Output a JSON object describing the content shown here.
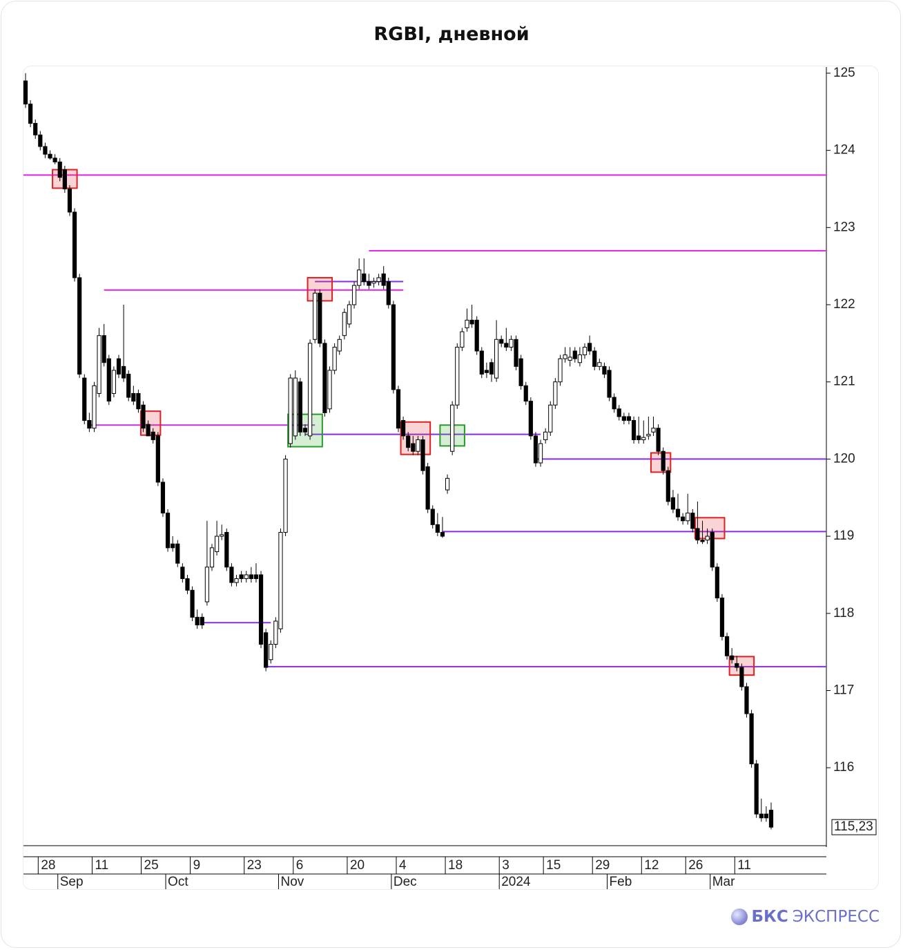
{
  "chart_data": {
    "type": "candlestick",
    "title": "RGBI, дневной",
    "open": [
      124.9,
      124.6,
      124.35,
      124.2,
      124.05,
      123.95,
      123.9,
      123.85,
      123.75,
      123.5,
      123.2,
      122.35,
      121.05,
      120.5,
      120.4,
      120.85,
      121.6,
      121.3,
      120.85,
      121.3,
      121.2,
      121.1,
      120.85,
      120.85,
      120.7,
      120.45,
      120.35,
      120.3,
      119.7,
      119.3,
      118.9,
      118.9,
      118.6,
      118.45,
      118.3,
      117.95,
      117.95,
      118.15,
      118.6,
      118.8,
      119.0,
      119.05,
      118.6,
      118.4,
      118.5,
      118.45,
      118.5,
      118.5,
      118.5,
      117.75,
      117.4,
      117.6,
      117.8,
      119.05,
      120.2,
      120.3,
      121.0,
      120.4,
      120.3,
      121.55,
      122.15,
      121.5,
      120.65,
      121.15,
      121.4,
      121.6,
      121.75,
      122.0,
      122.25,
      122.4,
      122.3,
      122.28,
      122.3,
      122.4,
      122.3,
      122.0,
      120.9,
      120.5,
      120.3,
      120.2,
      120.1,
      120.25,
      119.9,
      119.35,
      119.15,
      119.05,
      119.6,
      120.1,
      120.7,
      121.45,
      121.7,
      121.8,
      121.8,
      121.4,
      121.15,
      121.25,
      121.05,
      121.55,
      121.5,
      121.45,
      121.55,
      121.3,
      120.95,
      120.75,
      120.3,
      119.95,
      120.25,
      120.35,
      120.7,
      121.0,
      121.3,
      121.28,
      121.4,
      121.25,
      121.35,
      121.5,
      121.4,
      121.2,
      121.2,
      121.15,
      120.8,
      120.65,
      120.55,
      120.55,
      120.5,
      120.3,
      120.25,
      120.3,
      120.35,
      120.4,
      120.1,
      119.85,
      119.5,
      119.35,
      119.25,
      119.2,
      119.3,
      119.1,
      118.95,
      118.95,
      119.05,
      118.6,
      118.2,
      117.7,
      117.45,
      117.35,
      117.3,
      117.05,
      116.7,
      116.05,
      115.4,
      115.4,
      115.45
    ],
    "high": [
      125.0,
      124.65,
      124.4,
      124.25,
      124.1,
      124.0,
      123.95,
      123.9,
      123.8,
      123.55,
      123.25,
      122.4,
      121.1,
      120.6,
      121.0,
      121.7,
      121.75,
      121.35,
      121.2,
      121.35,
      122.0,
      121.15,
      120.95,
      120.9,
      120.75,
      120.5,
      120.4,
      120.35,
      119.75,
      119.35,
      119.0,
      118.95,
      118.65,
      118.5,
      118.35,
      118.05,
      118.0,
      119.2,
      118.9,
      119.2,
      119.15,
      119.1,
      118.65,
      118.5,
      118.55,
      118.55,
      118.6,
      118.65,
      118.55,
      117.8,
      117.65,
      117.95,
      119.1,
      120.05,
      121.1,
      121.15,
      121.05,
      120.45,
      121.55,
      122.2,
      122.2,
      121.55,
      121.2,
      121.5,
      121.6,
      121.95,
      122.05,
      122.3,
      122.6,
      122.6,
      122.4,
      122.35,
      122.4,
      122.5,
      122.35,
      122.05,
      120.95,
      120.55,
      120.35,
      120.3,
      120.3,
      120.3,
      119.95,
      119.4,
      119.3,
      119.25,
      119.8,
      120.75,
      121.5,
      121.7,
      121.95,
      122.0,
      121.85,
      121.45,
      121.25,
      121.3,
      121.8,
      121.6,
      121.7,
      121.6,
      121.6,
      121.35,
      121.0,
      120.8,
      120.35,
      120.25,
      120.4,
      120.75,
      121.05,
      121.35,
      121.45,
      121.45,
      121.45,
      121.45,
      121.5,
      121.6,
      121.45,
      121.3,
      121.25,
      121.2,
      120.85,
      120.7,
      120.6,
      120.6,
      120.55,
      120.55,
      120.5,
      120.55,
      120.55,
      120.45,
      120.15,
      119.9,
      119.6,
      119.55,
      119.3,
      119.55,
      119.35,
      119.45,
      119.2,
      119.1,
      119.1,
      118.65,
      118.25,
      117.75,
      117.55,
      117.45,
      117.35,
      117.1,
      116.75,
      116.1,
      115.6,
      115.5,
      115.55
    ],
    "low": [
      124.55,
      124.3,
      124.15,
      124.0,
      123.9,
      123.88,
      123.82,
      123.6,
      123.45,
      123.15,
      122.3,
      121.05,
      120.45,
      120.35,
      120.35,
      120.8,
      121.2,
      120.7,
      120.8,
      121.05,
      121.0,
      120.75,
      120.7,
      120.6,
      120.35,
      120.3,
      120.2,
      119.65,
      119.25,
      118.8,
      118.8,
      118.6,
      118.4,
      118.25,
      117.9,
      117.8,
      117.8,
      118.1,
      118.55,
      118.75,
      118.95,
      118.55,
      118.35,
      118.35,
      118.4,
      118.4,
      118.4,
      118.4,
      117.55,
      117.25,
      117.35,
      117.55,
      117.75,
      119.0,
      120.15,
      120.25,
      120.3,
      120.3,
      120.25,
      121.5,
      121.45,
      120.55,
      120.6,
      121.1,
      121.35,
      121.55,
      121.7,
      121.95,
      122.2,
      122.25,
      122.2,
      122.22,
      122.25,
      122.2,
      121.95,
      120.85,
      120.35,
      120.25,
      120.1,
      120.05,
      120.05,
      119.8,
      119.3,
      119.1,
      119.0,
      118.98,
      119.55,
      120.05,
      120.65,
      121.4,
      121.65,
      121.7,
      121.35,
      121.05,
      121.05,
      121.0,
      121.0,
      121.45,
      121.4,
      121.4,
      121.15,
      120.9,
      120.7,
      120.25,
      119.9,
      119.9,
      120.2,
      120.3,
      120.65,
      120.95,
      121.25,
      121.2,
      121.25,
      121.2,
      121.3,
      121.35,
      121.15,
      121.15,
      121.05,
      120.75,
      120.6,
      120.5,
      120.45,
      120.45,
      120.2,
      120.2,
      120.2,
      120.25,
      120.3,
      120.05,
      119.8,
      119.4,
      119.3,
      119.2,
      119.15,
      119.15,
      119.05,
      118.9,
      118.9,
      118.9,
      118.55,
      118.15,
      117.65,
      117.4,
      117.35,
      117.25,
      117.0,
      116.65,
      116.0,
      115.35,
      115.3,
      115.3,
      115.2
    ],
    "close": [
      124.6,
      124.35,
      124.2,
      124.05,
      123.95,
      123.9,
      123.85,
      123.65,
      123.5,
      123.2,
      122.35,
      121.1,
      120.5,
      120.4,
      120.95,
      121.6,
      121.25,
      120.75,
      121.15,
      121.1,
      121.05,
      120.8,
      120.75,
      120.65,
      120.4,
      120.3,
      120.25,
      119.7,
      119.3,
      118.85,
      118.85,
      118.65,
      118.45,
      118.3,
      117.95,
      117.85,
      117.85,
      118.6,
      118.85,
      119.0,
      119.02,
      118.6,
      118.4,
      118.45,
      118.45,
      118.5,
      118.45,
      118.45,
      117.6,
      117.3,
      117.6,
      117.9,
      119.05,
      120.0,
      121.05,
      121.05,
      120.35,
      120.35,
      121.5,
      122.15,
      121.5,
      120.6,
      121.15,
      121.45,
      121.55,
      121.9,
      122.0,
      122.25,
      122.45,
      122.3,
      122.25,
      122.3,
      122.35,
      122.25,
      122.0,
      120.9,
      120.4,
      120.3,
      120.15,
      120.1,
      120.25,
      119.85,
      119.35,
      119.15,
      119.05,
      119.0,
      119.75,
      120.7,
      121.45,
      121.65,
      121.8,
      121.75,
      121.4,
      121.1,
      121.12,
      121.1,
      121.55,
      121.5,
      121.45,
      121.55,
      121.2,
      120.95,
      120.75,
      120.3,
      119.95,
      120.2,
      120.35,
      120.7,
      121.0,
      121.3,
      121.35,
      121.32,
      121.3,
      121.35,
      121.45,
      121.4,
      121.2,
      121.25,
      121.1,
      120.8,
      120.65,
      120.55,
      120.5,
      120.5,
      120.25,
      120.25,
      120.28,
      120.32,
      120.4,
      120.1,
      119.85,
      119.45,
      119.35,
      119.25,
      119.2,
      119.3,
      119.1,
      118.95,
      118.93,
      119.0,
      118.6,
      118.2,
      117.7,
      117.45,
      117.4,
      117.3,
      117.05,
      116.7,
      116.05,
      115.4,
      115.35,
      115.35,
      115.23
    ],
    "categories": [
      null,
      null,
      null,
      "28",
      null,
      null,
      null,
      null,
      null,
      null,
      null,
      null,
      null,
      null,
      "11",
      null,
      null,
      null,
      null,
      null,
      null,
      null,
      null,
      null,
      "25",
      null,
      null,
      null,
      null,
      null,
      null,
      null,
      null,
      null,
      "9",
      null,
      null,
      null,
      null,
      null,
      null,
      null,
      null,
      null,
      null,
      "23",
      null,
      null,
      null,
      null,
      null,
      null,
      null,
      null,
      null,
      "6",
      null,
      null,
      null,
      null,
      null,
      null,
      null,
      null,
      null,
      null,
      "20",
      null,
      null,
      null,
      null,
      null,
      null,
      null,
      null,
      null,
      "4",
      null,
      null,
      null,
      null,
      null,
      null,
      null,
      null,
      null,
      "18",
      null,
      null,
      null,
      null,
      null,
      null,
      null,
      null,
      null,
      null,
      "3",
      null,
      null,
      null,
      null,
      null,
      null,
      null,
      null,
      "15",
      null,
      null,
      null,
      null,
      null,
      null,
      null,
      null,
      null,
      "29",
      null,
      null,
      null,
      null,
      null,
      null,
      null,
      null,
      null,
      "12",
      null,
      null,
      null,
      null,
      null,
      null,
      null,
      null,
      "26",
      null,
      null,
      null,
      null,
      null,
      null,
      null,
      null,
      null,
      "11",
      null,
      null,
      null,
      null,
      null,
      null,
      null
    ],
    "months": [
      null,
      null,
      null,
      null,
      null,
      null,
      null,
      "Sep",
      null,
      null,
      null,
      null,
      null,
      null,
      null,
      null,
      null,
      null,
      null,
      null,
      null,
      null,
      null,
      null,
      null,
      null,
      null,
      null,
      null,
      "Oct",
      null,
      null,
      null,
      null,
      null,
      null,
      null,
      null,
      null,
      null,
      null,
      null,
      null,
      null,
      null,
      null,
      null,
      null,
      null,
      null,
      null,
      null,
      "Nov",
      null,
      null,
      null,
      null,
      null,
      null,
      null,
      null,
      null,
      null,
      null,
      null,
      null,
      null,
      null,
      null,
      null,
      null,
      null,
      null,
      null,
      null,
      "Dec",
      null,
      null,
      null,
      null,
      null,
      null,
      null,
      null,
      null,
      null,
      null,
      null,
      null,
      null,
      null,
      null,
      null,
      null,
      null,
      null,
      null,
      "2024",
      null,
      null,
      null,
      null,
      null,
      null,
      null,
      null,
      null,
      null,
      null,
      null,
      null,
      null,
      null,
      null,
      null,
      null,
      null,
      null,
      null,
      "Feb",
      null,
      null,
      null,
      null,
      null,
      null,
      null,
      null,
      null,
      null,
      null,
      null,
      null,
      null,
      null,
      null,
      null,
      null,
      null,
      null,
      "Mar",
      null,
      null,
      null,
      null,
      null,
      null,
      null,
      null,
      null,
      null,
      null,
      null
    ],
    "ylim": [
      114.99,
      125.08
    ],
    "yticks": [
      116,
      117,
      118,
      119,
      120,
      121,
      122,
      123,
      124,
      125
    ],
    "last_price": {
      "value": 115.23,
      "label": "115,23"
    },
    "up_color": "#ffffff",
    "down_color": "#000000",
    "levels": [
      {
        "value": 123.68,
        "start": 0,
        "end": 152,
        "color": "#e020e0"
      },
      {
        "value": 122.7,
        "start": 70,
        "end": 152,
        "color": "#e020e0"
      },
      {
        "value": 122.19,
        "start": 16,
        "end": 77,
        "color": "#e020e0"
      },
      {
        "value": 122.3,
        "start": 59,
        "end": 77,
        "color": "#8a2be2"
      },
      {
        "value": 120.44,
        "start": 13,
        "end": 59,
        "color": "#c030e0"
      },
      {
        "value": 120.32,
        "start": 57,
        "end": 105,
        "color": "#8a2be2"
      },
      {
        "value": 120.0,
        "start": 104,
        "end": 152,
        "color": "#8a2be2"
      },
      {
        "value": 119.06,
        "start": 85,
        "end": 152,
        "color": "#8a2be2"
      },
      {
        "value": 117.88,
        "start": 36,
        "end": 50,
        "color": "#8a2be2"
      },
      {
        "value": 117.31,
        "start": 49,
        "end": 152,
        "color": "#8a2be2"
      }
    ],
    "zones": [
      {
        "start": 6,
        "end": 10,
        "low": 123.51,
        "high": 123.75,
        "color": "red"
      },
      {
        "start": 24,
        "end": 27,
        "low": 120.31,
        "high": 120.62,
        "color": "red"
      },
      {
        "start": 58,
        "end": 62,
        "low": 122.05,
        "high": 122.35,
        "color": "red"
      },
      {
        "start": 77,
        "end": 82,
        "low": 120.06,
        "high": 120.48,
        "color": "red"
      },
      {
        "start": 128,
        "end": 131,
        "low": 119.83,
        "high": 120.08,
        "color": "red"
      },
      {
        "start": 137,
        "end": 142,
        "low": 118.97,
        "high": 119.24,
        "color": "red"
      },
      {
        "start": 144,
        "end": 148,
        "low": 117.2,
        "high": 117.44,
        "color": "red"
      },
      {
        "start": 54,
        "end": 60,
        "low": 120.16,
        "high": 120.58,
        "color": "green"
      },
      {
        "start": 85,
        "end": 89,
        "low": 120.17,
        "high": 120.44,
        "color": "green"
      }
    ]
  },
  "brand": {
    "name": "БКС",
    "product": "ЭКСПРЕСС"
  }
}
